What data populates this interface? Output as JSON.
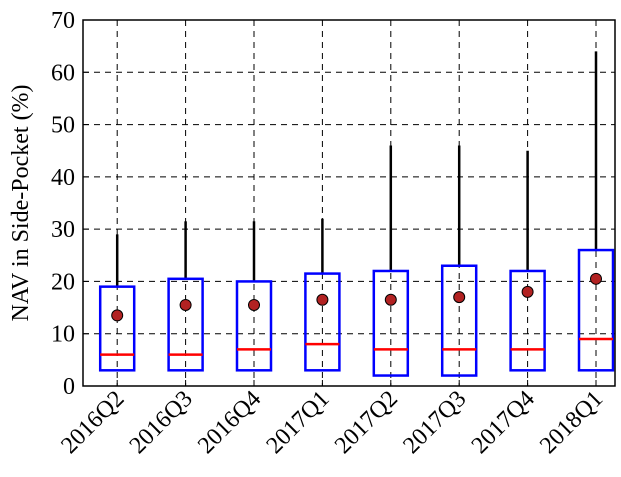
{
  "chart_data": {
    "type": "box",
    "y_label": "NAV in Side-Pocket (%)",
    "categories": [
      "2016Q2",
      "2016Q3",
      "2016Q4",
      "2017Q1",
      "2017Q2",
      "2017Q3",
      "2017Q4",
      "2018Q1"
    ],
    "min": [
      3,
      3,
      3,
      3,
      2,
      2,
      3,
      3
    ],
    "q1": [
      3,
      3,
      3,
      3,
      2,
      2,
      3,
      3
    ],
    "median": [
      6,
      6,
      7,
      8,
      7,
      7,
      7,
      9
    ],
    "q3": [
      19,
      20.5,
      20,
      21.5,
      22,
      23,
      22,
      26
    ],
    "max": [
      29,
      31.5,
      31.5,
      32,
      46,
      46,
      45,
      64
    ],
    "mean": [
      13.5,
      15.5,
      15.5,
      16.5,
      16.5,
      17,
      18,
      20.5
    ],
    "box_color": "#0000ff",
    "median_color": "#ff0000",
    "mean_color": "#b22222",
    "whisker_color": "#000000",
    "ylim": [
      0,
      70
    ],
    "yticks": [
      0,
      10,
      20,
      30,
      40,
      50,
      60,
      70
    ],
    "grid": true
  }
}
